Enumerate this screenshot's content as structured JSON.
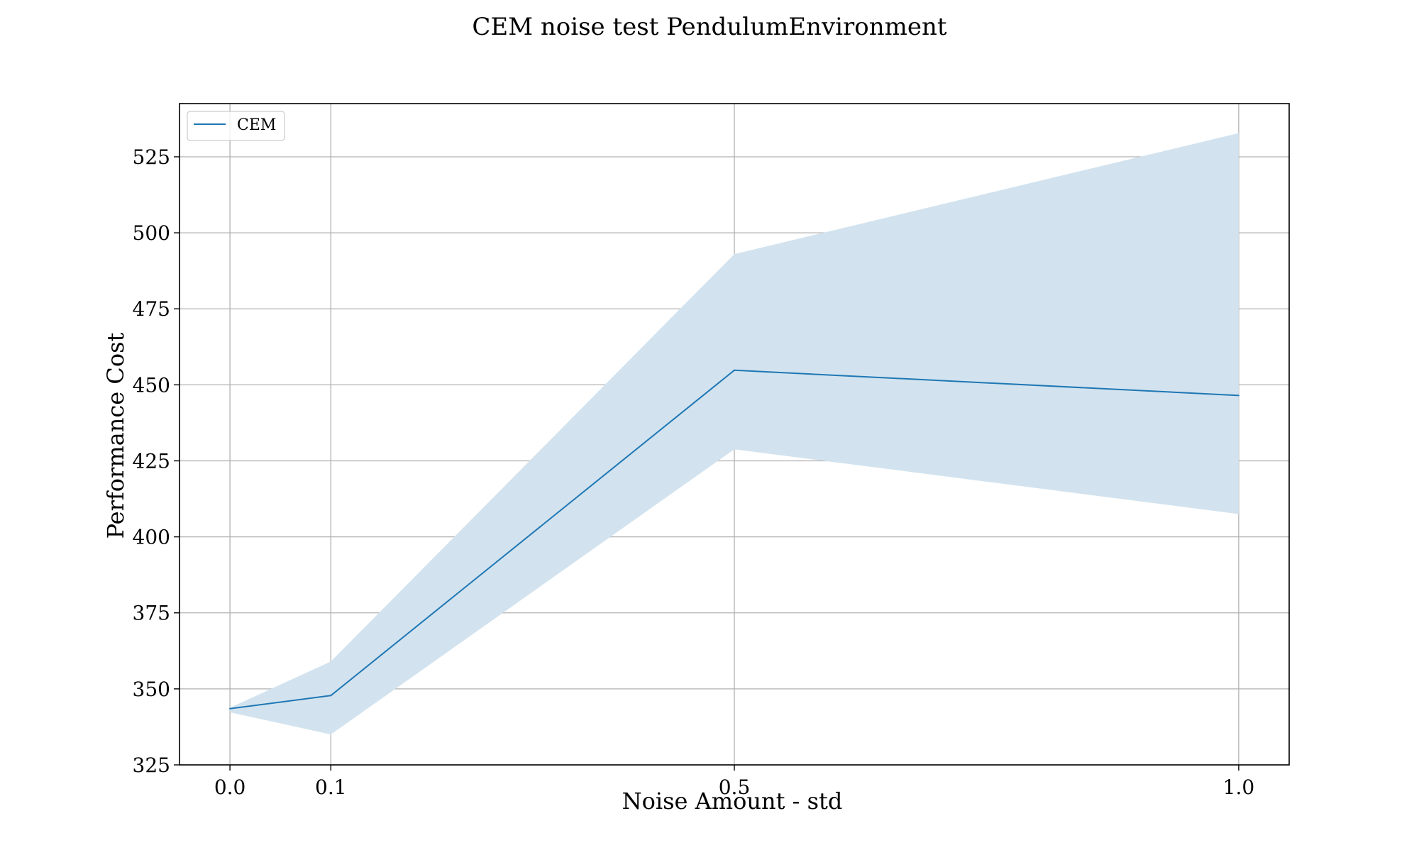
{
  "chart_data": {
    "type": "line",
    "title": "CEM noise test PendulumEnvironment",
    "xlabel": "Noise Amount - std",
    "ylabel": "Performance Cost",
    "x": [
      0.0,
      0.1,
      0.5,
      1.0
    ],
    "x_ticks": [
      "0.0",
      "0.1",
      "0.5",
      "1.0"
    ],
    "y_ticks": [
      "325",
      "350",
      "375",
      "400",
      "425",
      "450",
      "475",
      "500",
      "525"
    ],
    "xlim": [
      -0.05,
      1.05
    ],
    "ylim": [
      325,
      542.5
    ],
    "grid": true,
    "legend_position": "top-left",
    "series": [
      {
        "name": "CEM",
        "values": [
          343.5,
          347.8,
          454.8,
          446.5
        ],
        "band_upper": [
          343.8,
          359.0,
          493.0,
          532.8
        ],
        "band_lower": [
          342.3,
          335.0,
          428.8,
          407.5
        ],
        "color": "#1f77b4",
        "band_color": "#d2e3ef"
      }
    ],
    "colors": {
      "grid": "#b0b0b0",
      "axes": "#000000"
    }
  }
}
